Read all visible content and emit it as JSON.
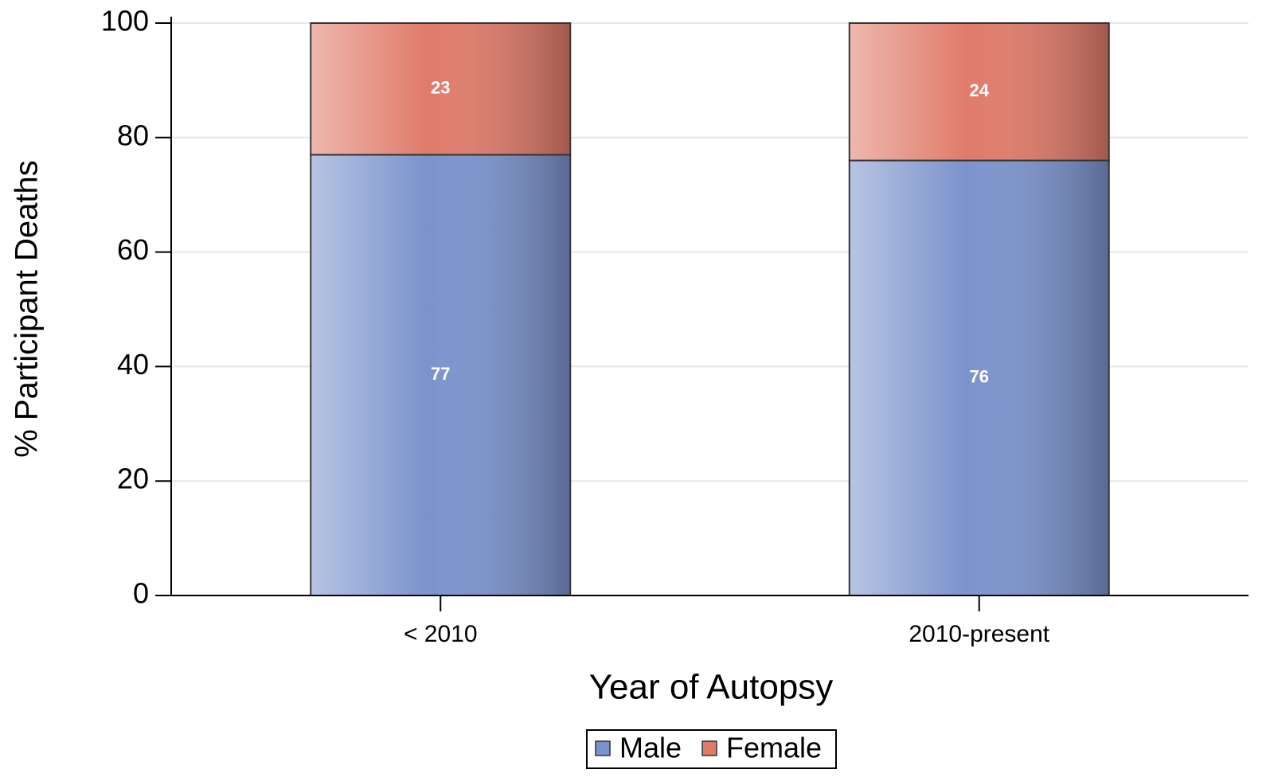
{
  "chart_data": {
    "type": "stacked_bar",
    "y_label": "% Participant Deaths",
    "x_label": "Year of Autopsy",
    "categories": [
      "< 2010",
      "2010-present"
    ],
    "series": [
      {
        "name": "Male",
        "color": "#7b93cc",
        "values": [
          77,
          76
        ]
      },
      {
        "name": "Female",
        "color": "#e07b6a",
        "values": [
          23,
          24
        ]
      }
    ],
    "ylim": [
      0,
      100
    ],
    "yticks": [
      0,
      20,
      40,
      60,
      80,
      100
    ],
    "grid": true,
    "legend": "bottom"
  }
}
